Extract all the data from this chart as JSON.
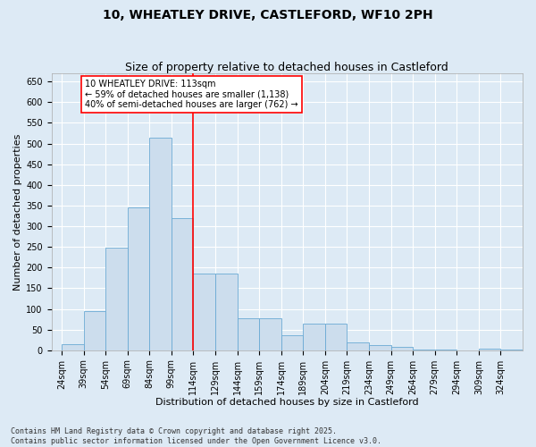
{
  "title_line1": "10, WHEATLEY DRIVE, CASTLEFORD, WF10 2PH",
  "title_line2": "Size of property relative to detached houses in Castleford",
  "xlabel": "Distribution of detached houses by size in Castleford",
  "ylabel": "Number of detached properties",
  "bar_color": "#ccdded",
  "bar_edge_color": "#6aaad4",
  "background_color": "#ddeaf5",
  "grid_color": "#ffffff",
  "fig_bg_color": "#ddeaf5",
  "vline_x": 114,
  "vline_color": "red",
  "annotation_text": "10 WHEATLEY DRIVE: 113sqm\n← 59% of detached houses are smaller (1,138)\n40% of semi-detached houses are larger (762) →",
  "annotation_box_color": "white",
  "annotation_box_edge": "red",
  "categories": [
    "24sqm",
    "39sqm",
    "54sqm",
    "69sqm",
    "84sqm",
    "99sqm",
    "114sqm",
    "129sqm",
    "144sqm",
    "159sqm",
    "174sqm",
    "189sqm",
    "204sqm",
    "219sqm",
    "234sqm",
    "249sqm",
    "264sqm",
    "279sqm",
    "294sqm",
    "309sqm",
    "324sqm"
  ],
  "bin_starts": [
    24,
    39,
    54,
    69,
    84,
    99,
    114,
    129,
    144,
    159,
    174,
    189,
    204,
    219,
    234,
    249,
    264,
    279,
    294,
    309,
    324
  ],
  "bin_width": 15,
  "values": [
    15,
    95,
    248,
    345,
    515,
    320,
    185,
    185,
    78,
    78,
    37,
    65,
    65,
    18,
    12,
    8,
    2,
    2,
    0,
    3,
    2
  ],
  "ylim": [
    0,
    670
  ],
  "yticks": [
    0,
    50,
    100,
    150,
    200,
    250,
    300,
    350,
    400,
    450,
    500,
    550,
    600,
    650
  ],
  "xmin": 17,
  "xmax": 339,
  "footnote": "Contains HM Land Registry data © Crown copyright and database right 2025.\nContains public sector information licensed under the Open Government Licence v3.0.",
  "title_fontsize": 10,
  "subtitle_fontsize": 9,
  "axis_label_fontsize": 8,
  "tick_fontsize": 7,
  "footnote_fontsize": 6,
  "annot_fontsize": 7
}
